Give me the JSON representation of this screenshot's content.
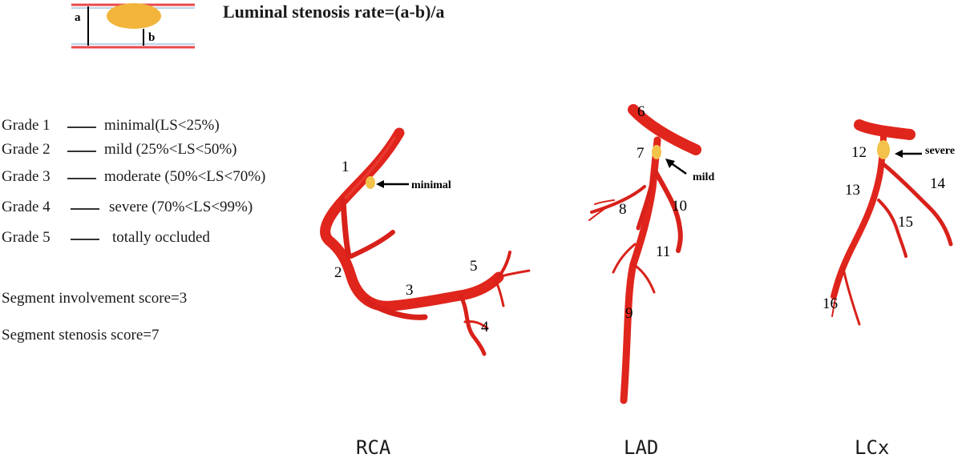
{
  "inset": {
    "label_a": "a",
    "label_b": "b",
    "colors": {
      "wall": "#e8484c",
      "lumen_line": "#b8d4ea",
      "plaque": "#f2b43a"
    }
  },
  "formula": "Luminal stenosis rate=(a-b)/a",
  "grades": [
    {
      "label": "Grade 1",
      "desc": "minimal(LS<25%)"
    },
    {
      "label": "Grade 2",
      "desc": "mild (25%<LS<50%)"
    },
    {
      "label": "Grade 3",
      "desc": "moderate (50%<LS<70%)"
    },
    {
      "label": "Grade 4",
      "desc": "severe (70%<LS<99%)"
    },
    {
      "label": "Grade 5",
      "desc": "totally occluded"
    }
  ],
  "scores": {
    "involvement": "Segment involvement score=3",
    "stenosis": "Segment stenosis score=7"
  },
  "arteries": [
    {
      "name": "RCA",
      "segments": [
        "1",
        "2",
        "3",
        "4",
        "5"
      ],
      "lesion": {
        "segment": "1",
        "grade": "minimal"
      }
    },
    {
      "name": "LAD",
      "segments": [
        "6",
        "7",
        "8",
        "9",
        "10",
        "11"
      ],
      "lesion": {
        "segment": "7",
        "grade": "mild"
      }
    },
    {
      "name": "LCx",
      "segments": [
        "12",
        "13",
        "14",
        "15",
        "16"
      ],
      "lesion": {
        "segment": "12",
        "grade": "severe"
      }
    }
  ],
  "colors": {
    "vessel": "#e0251c",
    "vessel_dark": "#b81712",
    "plaque": "#f2c24a",
    "arrow": "#000000"
  }
}
